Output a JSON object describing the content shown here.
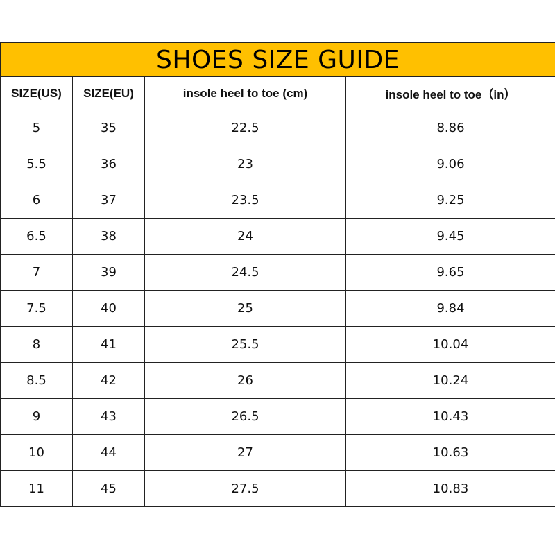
{
  "title": "SHOES SIZE GUIDE",
  "colors": {
    "title_bg": "#FFC000",
    "border": "#222222"
  },
  "columns": [
    "SIZE(US)",
    "SIZE(EU)",
    "insole heel to toe (cm)",
    "insole heel to toe（in）"
  ],
  "rows": [
    [
      "5",
      "35",
      "22.5",
      "8.86"
    ],
    [
      "5.5",
      "36",
      "23",
      "9.06"
    ],
    [
      "6",
      "37",
      "23.5",
      "9.25"
    ],
    [
      "6.5",
      "38",
      "24",
      "9.45"
    ],
    [
      "7",
      "39",
      "24.5",
      "9.65"
    ],
    [
      "7.5",
      "40",
      "25",
      "9.84"
    ],
    [
      "8",
      "41",
      "25.5",
      "10.04"
    ],
    [
      "8.5",
      "42",
      "26",
      "10.24"
    ],
    [
      "9",
      "43",
      "26.5",
      "10.43"
    ],
    [
      "10",
      "44",
      "27",
      "10.63"
    ],
    [
      "11",
      "45",
      "27.5",
      "10.83"
    ]
  ]
}
